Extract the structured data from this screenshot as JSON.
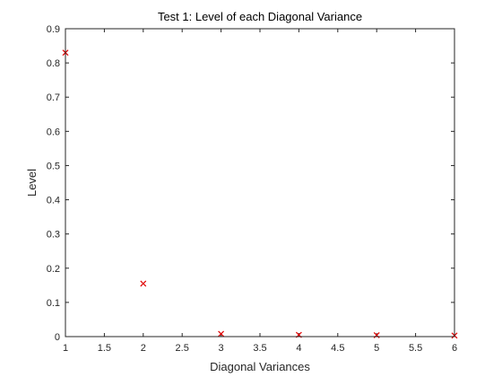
{
  "chart_data": {
    "type": "scatter",
    "title": "Test 1: Level of each Diagonal Variance",
    "xlabel": "Diagonal Variances",
    "ylabel": "Level",
    "xlim": [
      1,
      6
    ],
    "ylim": [
      0,
      0.9
    ],
    "xticks": [
      1,
      1.5,
      2,
      2.5,
      3,
      3.5,
      4,
      4.5,
      5,
      5.5,
      6
    ],
    "xtick_labels": [
      "1",
      "1.5",
      "2",
      "2.5",
      "3",
      "3.5",
      "4",
      "4.5",
      "5",
      "5.5",
      "6"
    ],
    "yticks": [
      0,
      0.1,
      0.2,
      0.3,
      0.4,
      0.5,
      0.6,
      0.7,
      0.8,
      0.9
    ],
    "ytick_labels": [
      "0",
      "0.1",
      "0.2",
      "0.3",
      "0.4",
      "0.5",
      "0.6",
      "0.7",
      "0.8",
      "0.9"
    ],
    "grid": false,
    "marker": "x",
    "marker_color": "#e00000",
    "series": [
      {
        "x": [
          1,
          2,
          3,
          4,
          5,
          6
        ],
        "y": [
          0.83,
          0.155,
          0.008,
          0.005,
          0.004,
          0.003
        ]
      }
    ]
  }
}
